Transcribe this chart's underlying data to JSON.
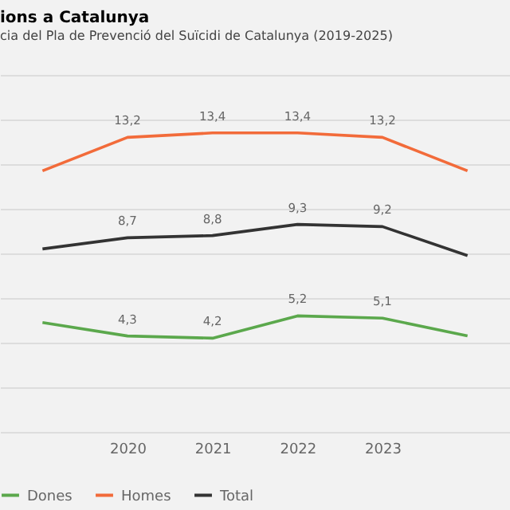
{
  "chart_data": {
    "type": "line",
    "title": "ions a Catalunya",
    "subtitle": "cia del Pla de Prevenció del Suïcidi de Catalunya (2019-2025)",
    "categories": [
      null,
      "2020",
      "2021",
      "2022",
      "2023",
      null
    ],
    "series": [
      {
        "name": "Dones",
        "color": "#5ba84c",
        "values": [
          4.9,
          4.3,
          4.2,
          5.2,
          5.1,
          4.3
        ],
        "value_labels": [
          null,
          "4,3",
          "4,2",
          "5,2",
          "5,1",
          null
        ]
      },
      {
        "name": "Homes",
        "color": "#f26b3a",
        "values": [
          11.7,
          13.2,
          13.4,
          13.4,
          13.2,
          11.7
        ],
        "value_labels": [
          null,
          "13,2",
          "13,4",
          "13,4",
          "13,2",
          null
        ]
      },
      {
        "name": "Total",
        "color": "#333333",
        "values": [
          8.2,
          8.7,
          8.8,
          9.3,
          9.2,
          7.9
        ],
        "value_labels": [
          null,
          "8,7",
          "8,8",
          "9,3",
          "9,2",
          null
        ]
      }
    ],
    "ylim": [
      0,
      16
    ],
    "yticks": [
      {
        "value": 0,
        "label": null
      },
      {
        "value": 2,
        "label": null
      },
      {
        "value": 4,
        "label": null
      },
      {
        "value": 6,
        "label": null
      },
      {
        "value": 8,
        "label": null
      },
      {
        "value": 10,
        "label": null
      },
      {
        "value": 12,
        "label": null
      },
      {
        "value": 14,
        "label": null
      },
      {
        "value": 16,
        "label": null
      }
    ],
    "tick_labels": "x",
    "grid": "y",
    "legend": "bottom",
    "marker": "none",
    "line_style": "solid"
  }
}
